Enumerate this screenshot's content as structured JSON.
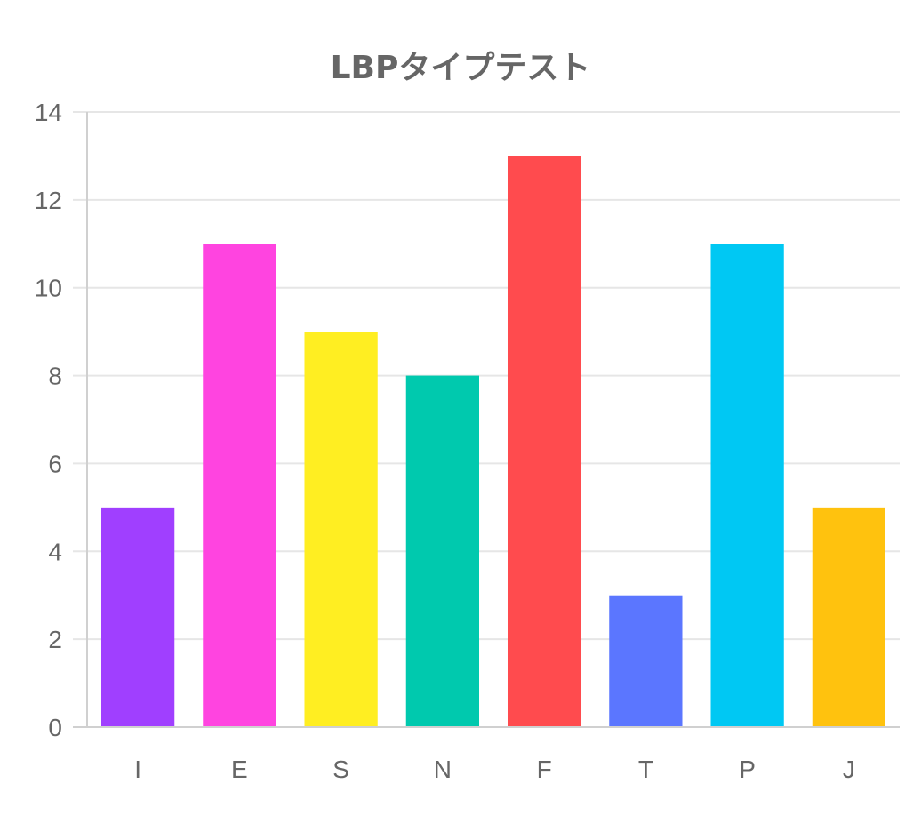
{
  "chart_data": {
    "type": "bar",
    "title": "LBPタイプテスト",
    "xlabel": "",
    "ylabel": "",
    "categories": [
      "I",
      "E",
      "S",
      "N",
      "F",
      "T",
      "P",
      "J"
    ],
    "values": [
      5,
      11,
      9,
      8,
      13,
      3,
      11,
      5
    ],
    "colors": [
      "#a03fff",
      "#ff44e0",
      "#ffee22",
      "#00c9ae",
      "#ff4b4e",
      "#5b76ff",
      "#00c8f3",
      "#ffc20e"
    ],
    "ylim": [
      0,
      14
    ],
    "yticks": [
      0,
      2,
      4,
      6,
      8,
      10,
      12,
      14
    ],
    "grid": true,
    "legend": "none"
  }
}
